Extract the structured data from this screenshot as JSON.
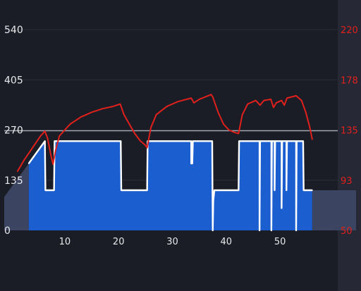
{
  "chart_data": {
    "type": "area",
    "x_ticks": [
      10,
      20,
      30,
      40,
      50
    ],
    "xlim": [
      1.2,
      56.0
    ],
    "y_left": {
      "ticks": [
        0,
        135,
        270,
        405,
        540
      ],
      "ylim": [
        0,
        540
      ]
    },
    "y_right": {
      "ticks": [
        "50",
        "93",
        "135",
        "178",
        "220"
      ],
      "ylim": [
        50,
        220
      ]
    },
    "reference_line": {
      "axis": "left",
      "value": 268
    },
    "series": [
      {
        "axis": "left",
        "style": "blue-area-white-outline",
        "color": "#1a5ed0",
        "points": [
          [
            3.3,
            180
          ],
          [
            6.3,
            240
          ],
          [
            6.4,
            108
          ],
          [
            8.0,
            108
          ],
          [
            8.1,
            240
          ],
          [
            20.4,
            240
          ],
          [
            20.5,
            108
          ],
          [
            25.3,
            108
          ],
          [
            25.4,
            240
          ],
          [
            33.5,
            240
          ],
          [
            33.5,
            180
          ],
          [
            33.7,
            180
          ],
          [
            33.8,
            240
          ],
          [
            37.4,
            240
          ],
          [
            37.5,
            0
          ],
          [
            37.6,
            80
          ],
          [
            37.8,
            108
          ],
          [
            42.3,
            108
          ],
          [
            42.4,
            240
          ],
          [
            46.2,
            240
          ],
          [
            46.2,
            0
          ],
          [
            46.3,
            240
          ],
          [
            48.4,
            240
          ],
          [
            48.4,
            0
          ],
          [
            48.5,
            240
          ],
          [
            49.0,
            240
          ],
          [
            49.0,
            108
          ],
          [
            49.1,
            240
          ],
          [
            50.3,
            240
          ],
          [
            50.3,
            60
          ],
          [
            50.4,
            240
          ],
          [
            51.2,
            240
          ],
          [
            51.2,
            108
          ],
          [
            51.3,
            240
          ],
          [
            53.0,
            240
          ],
          [
            53.0,
            0
          ],
          [
            53.1,
            240
          ],
          [
            54.3,
            240
          ],
          [
            54.4,
            108
          ],
          [
            56.0,
            108
          ]
        ]
      },
      {
        "axis": "right",
        "style": "line",
        "color": "#e0201c",
        "points": [
          [
            1.2,
            100
          ],
          [
            2.5,
            110
          ],
          [
            4.0,
            120
          ],
          [
            5.5,
            130
          ],
          [
            6.3,
            134
          ],
          [
            6.8,
            128
          ],
          [
            7.4,
            114
          ],
          [
            7.8,
            106
          ],
          [
            8.3,
            118
          ],
          [
            9.0,
            130
          ],
          [
            11.0,
            140
          ],
          [
            13.0,
            146
          ],
          [
            15.0,
            150
          ],
          [
            17.0,
            153
          ],
          [
            19.0,
            155
          ],
          [
            20.3,
            157
          ],
          [
            21.0,
            148
          ],
          [
            22.0,
            140
          ],
          [
            23.0,
            132
          ],
          [
            24.0,
            126
          ],
          [
            25.0,
            122
          ],
          [
            25.3,
            120
          ],
          [
            26.0,
            137
          ],
          [
            27.0,
            148
          ],
          [
            29.0,
            155
          ],
          [
            31.0,
            159
          ],
          [
            33.5,
            162
          ],
          [
            34.0,
            158
          ],
          [
            35.0,
            161
          ],
          [
            37.2,
            165
          ],
          [
            37.5,
            163
          ],
          [
            38.5,
            150
          ],
          [
            39.5,
            140
          ],
          [
            40.5,
            135
          ],
          [
            41.5,
            133
          ],
          [
            42.3,
            132
          ],
          [
            43.0,
            148
          ],
          [
            44.0,
            157
          ],
          [
            45.5,
            160
          ],
          [
            46.3,
            156
          ],
          [
            47.0,
            160
          ],
          [
            48.3,
            161
          ],
          [
            48.8,
            154
          ],
          [
            49.3,
            158
          ],
          [
            50.3,
            160
          ],
          [
            50.8,
            156
          ],
          [
            51.3,
            162
          ],
          [
            53.0,
            164
          ],
          [
            54.0,
            160
          ],
          [
            54.8,
            150
          ],
          [
            55.5,
            138
          ],
          [
            56.0,
            127
          ]
        ]
      }
    ]
  }
}
